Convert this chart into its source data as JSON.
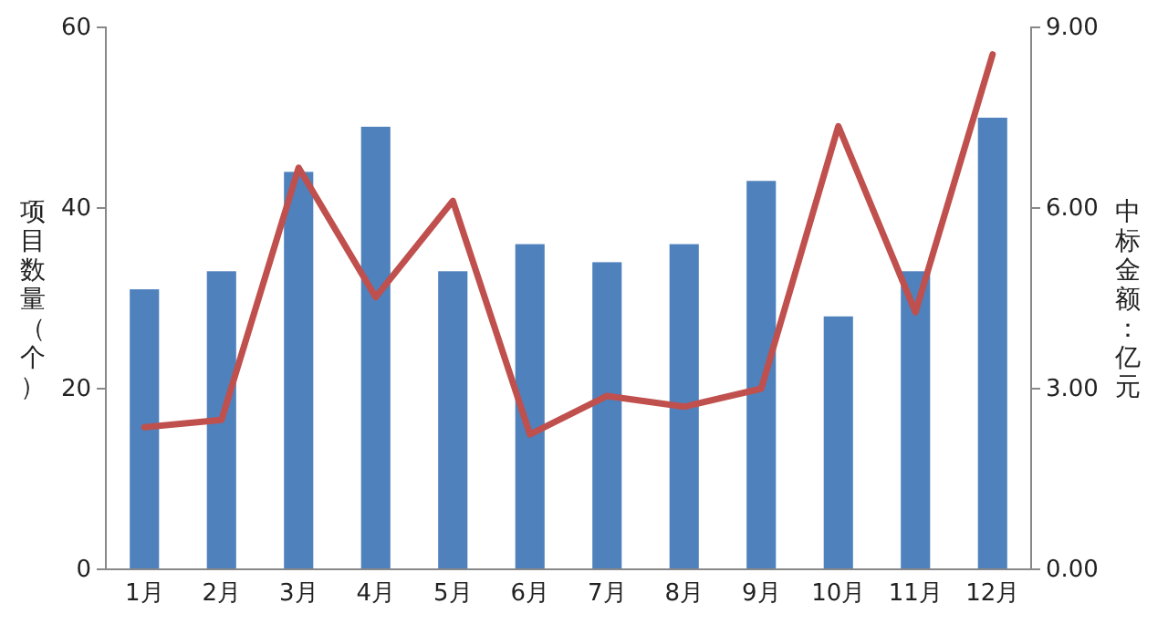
{
  "chart_data": {
    "type": "bar",
    "categories": [
      "1月",
      "2月",
      "3月",
      "4月",
      "5月",
      "6月",
      "7月",
      "8月",
      "9月",
      "10月",
      "11月",
      "12月"
    ],
    "series": [
      {
        "type": "bar",
        "color": "#4f81bd",
        "values": [
          31,
          33,
          44,
          49,
          33,
          36,
          34,
          36,
          43,
          28,
          33,
          50
        ]
      },
      {
        "type": "line",
        "axis": "y2",
        "color": "#c0504d",
        "values": [
          2.36,
          2.48,
          6.67,
          4.52,
          6.12,
          2.24,
          2.88,
          2.7,
          3.0,
          7.36,
          4.27,
          8.55
        ]
      }
    ],
    "ylabel": "项目数量（个）",
    "y2label": "中标金额：亿元",
    "ylim": [
      0,
      60
    ],
    "yticks": [
      0,
      20,
      40,
      60
    ],
    "y2lim": [
      0,
      9
    ],
    "y2ticks": [
      {
        "value": 0,
        "label": "0.00"
      },
      {
        "value": 3,
        "label": "3.00"
      },
      {
        "value": 6,
        "label": "6.00"
      },
      {
        "value": 9,
        "label": "9.00"
      }
    ],
    "grid": false,
    "marker": "none",
    "line_style": "solid"
  }
}
